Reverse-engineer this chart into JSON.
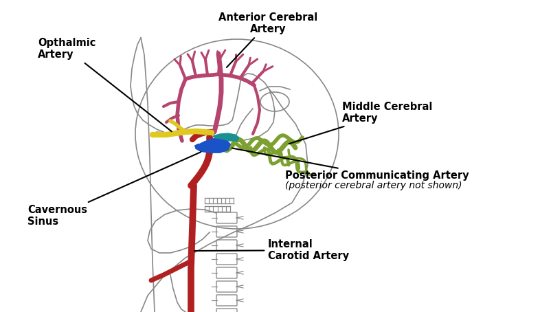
{
  "bg_color": "#ffffff",
  "skull_edge": "#888888",
  "skull_lw": 1.2,
  "anterior_cerebral_color": "#b5456e",
  "middle_cerebral_color": "#7da030",
  "carotid_color": "#b02020",
  "opthalmic_color": "#e0c820",
  "cavernous_color": "#1a52c8",
  "post_comm_color": "#1a9090",
  "line_color": "#000000",
  "label_fontsize": 10.5,
  "italic_fontsize": 10,
  "labels": {
    "opthalmic": "Opthalmic\nArtery",
    "anterior": "Anterior Cerebral\nArtery",
    "middle": "Middle Cerebral\nArtery",
    "post_comm": "Posterior Communicating Artery",
    "post_comm_sub": "(posterior cerebral artery not shown)",
    "cavernous": "Cavernous\nSinus",
    "carotid": "Internal\nCarotid Artery"
  }
}
